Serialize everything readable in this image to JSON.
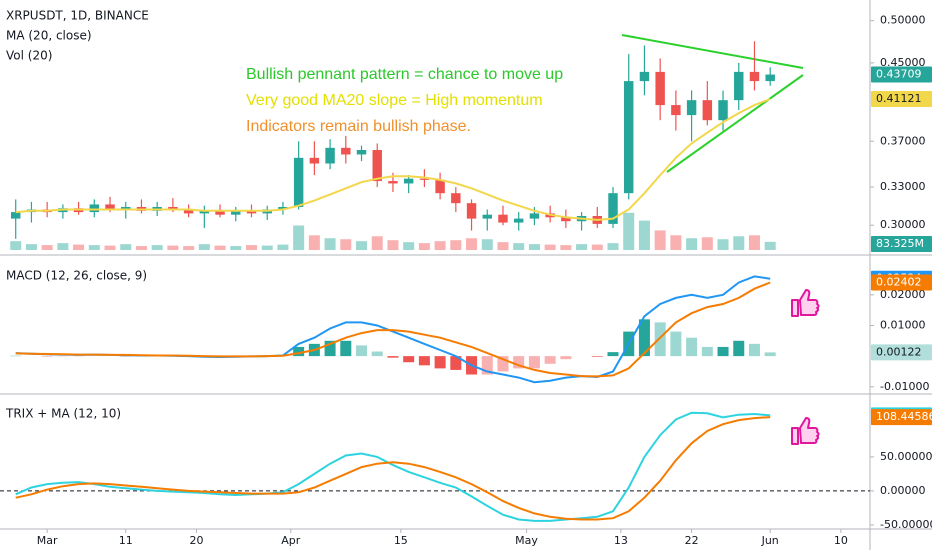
{
  "chart_data": [
    {
      "type": "candlestick",
      "title": "XRPUSDT, 1D, BINANCE",
      "log": true,
      "up_color": "#26a69a",
      "down_color": "#ef5350",
      "x": [
        1,
        3,
        5,
        7,
        9,
        11,
        13,
        15,
        17,
        19,
        21,
        23,
        25,
        27,
        29,
        31,
        33,
        35,
        37,
        39,
        41,
        43,
        45,
        47,
        49,
        51,
        53,
        55,
        57,
        59,
        61,
        63,
        65,
        67,
        69,
        71,
        73,
        75,
        77,
        79,
        81,
        83,
        85,
        87,
        89,
        91,
        93,
        95,
        97
      ],
      "xlim": [
        -1,
        109.7
      ],
      "open": [
        0.305,
        0.31,
        0.312,
        0.31,
        0.313,
        0.31,
        0.316,
        0.312,
        0.314,
        0.311,
        0.314,
        0.312,
        0.309,
        0.311,
        0.308,
        0.311,
        0.309,
        0.312,
        0.314,
        0.355,
        0.35,
        0.364,
        0.358,
        0.362,
        0.335,
        0.333,
        0.337,
        0.336,
        0.325,
        0.317,
        0.305,
        0.308,
        0.302,
        0.305,
        0.309,
        0.306,
        0.303,
        0.307,
        0.301,
        0.325,
        0.43,
        0.44,
        0.405,
        0.395,
        0.41,
        0.39,
        0.41,
        0.44,
        0.43
      ],
      "high": [
        0.32,
        0.318,
        0.318,
        0.316,
        0.318,
        0.32,
        0.322,
        0.318,
        0.32,
        0.318,
        0.321,
        0.316,
        0.315,
        0.316,
        0.314,
        0.316,
        0.315,
        0.318,
        0.37,
        0.37,
        0.372,
        0.375,
        0.366,
        0.368,
        0.342,
        0.34,
        0.345,
        0.342,
        0.33,
        0.32,
        0.312,
        0.315,
        0.31,
        0.314,
        0.315,
        0.312,
        0.31,
        0.314,
        0.33,
        0.46,
        0.47,
        0.455,
        0.42,
        0.42,
        0.43,
        0.42,
        0.45,
        0.475,
        0.445
      ],
      "low": [
        0.29,
        0.302,
        0.306,
        0.305,
        0.308,
        0.306,
        0.31,
        0.305,
        0.309,
        0.307,
        0.31,
        0.306,
        0.298,
        0.306,
        0.303,
        0.306,
        0.304,
        0.308,
        0.312,
        0.34,
        0.345,
        0.35,
        0.352,
        0.33,
        0.326,
        0.325,
        0.33,
        0.32,
        0.31,
        0.296,
        0.296,
        0.3,
        0.296,
        0.3,
        0.302,
        0.298,
        0.296,
        0.298,
        0.298,
        0.32,
        0.415,
        0.39,
        0.38,
        0.37,
        0.385,
        0.38,
        0.4,
        0.42,
        0.425
      ],
      "close": [
        0.31,
        0.312,
        0.31,
        0.313,
        0.31,
        0.316,
        0.312,
        0.314,
        0.311,
        0.314,
        0.312,
        0.309,
        0.311,
        0.308,
        0.311,
        0.309,
        0.312,
        0.314,
        0.355,
        0.35,
        0.364,
        0.358,
        0.362,
        0.335,
        0.333,
        0.337,
        0.336,
        0.325,
        0.317,
        0.305,
        0.308,
        0.302,
        0.305,
        0.309,
        0.306,
        0.303,
        0.307,
        0.301,
        0.325,
        0.43,
        0.44,
        0.405,
        0.395,
        0.41,
        0.39,
        0.41,
        0.44,
        0.43,
        0.43709
      ],
      "ylim": [
        0.282,
        0.52
      ],
      "yticks": [
        {
          "value": 0.5,
          "label": "0.50000"
        },
        {
          "value": 0.45,
          "label": "0.45000"
        },
        {
          "value": 0.37,
          "label": "0.37000"
        },
        {
          "value": 0.33,
          "label": "0.33000"
        },
        {
          "value": 0.3,
          "label": "0.30000"
        }
      ],
      "series": [
        {
          "name": "MA (20, close)",
          "color": "#f2d74b",
          "values": [
            0.31,
            0.311,
            0.311,
            0.312,
            0.312,
            0.312,
            0.312,
            0.312,
            0.312,
            0.312,
            0.312,
            0.312,
            0.311,
            0.311,
            0.311,
            0.311,
            0.311,
            0.312,
            0.315,
            0.319,
            0.324,
            0.329,
            0.334,
            0.337,
            0.339,
            0.339,
            0.338,
            0.336,
            0.333,
            0.329,
            0.324,
            0.319,
            0.315,
            0.311,
            0.308,
            0.306,
            0.305,
            0.304,
            0.305,
            0.312,
            0.325,
            0.34,
            0.355,
            0.368,
            0.378,
            0.388,
            0.397,
            0.405,
            0.41121
          ]
        }
      ],
      "volume": {
        "name": "Vol (20)",
        "values": [
          90,
          60,
          50,
          70,
          55,
          50,
          45,
          60,
          40,
          50,
          45,
          40,
          60,
          45,
          40,
          50,
          45,
          55,
          250,
          150,
          120,
          110,
          90,
          140,
          100,
          80,
          70,
          90,
          100,
          120,
          110,
          80,
          70,
          60,
          55,
          50,
          60,
          55,
          70,
          380,
          300,
          200,
          150,
          120,
          130,
          110,
          140,
          150,
          83.325
        ],
        "last_label": "83.325M",
        "ylim": [
          0,
          2500
        ]
      },
      "annotations": [
        {
          "text": "Bullish pennant pattern = chance to move up",
          "color": "#2bc82b"
        },
        {
          "text": "Very good MA20 slope = High momentum",
          "color": "#e3e000"
        },
        {
          "text": "Indicators remain bullish phase.",
          "color": "#f0902c"
        }
      ]
    },
    {
      "type": "macd",
      "title": "MACD (12, 26, close, 9)",
      "ylim": [
        -0.0117,
        0.032
      ],
      "yticks": [
        {
          "value": 0.02,
          "label": "0.02000"
        },
        {
          "value": 0.01,
          "label": "0.01000"
        },
        {
          "value": -0.01,
          "label": "-0.01000"
        }
      ],
      "series": [
        {
          "color": "#2196f3",
          "values": [
            0.001,
            0.0008,
            0.0006,
            0.0005,
            0.0004,
            0.0005,
            0.0004,
            0.0003,
            0.0002,
            0.0002,
            0.0001,
            0,
            -0.0002,
            -0.0003,
            -0.0002,
            -0.0001,
            0,
            0.0002,
            0.004,
            0.006,
            0.009,
            0.011,
            0.011,
            0.01,
            0.008,
            0.006,
            0.004,
            0.002,
            0,
            -0.003,
            -0.005,
            -0.006,
            -0.007,
            -0.0085,
            -0.008,
            -0.007,
            -0.0065,
            -0.0068,
            -0.005,
            0.004,
            0.013,
            0.017,
            0.019,
            0.02,
            0.019,
            0.02,
            0.024,
            0.026,
            0.02524
          ]
        },
        {
          "color": "#f57c00",
          "values": [
            0.0009,
            0.0008,
            0.0007,
            0.0006,
            0.0005,
            0.0005,
            0.0004,
            0.0004,
            0.0003,
            0.0002,
            0.0002,
            0.0001,
            0,
            -0.0001,
            -0.0001,
            -0.0001,
            0,
            0.0001,
            0.001,
            0.002,
            0.004,
            0.006,
            0.0075,
            0.0085,
            0.0085,
            0.008,
            0.007,
            0.006,
            0.0045,
            0.003,
            0.001,
            -0.001,
            -0.003,
            -0.0045,
            -0.0055,
            -0.006,
            -0.0065,
            -0.0066,
            -0.0063,
            -0.004,
            0.001,
            0.006,
            0.011,
            0.014,
            0.016,
            0.017,
            0.019,
            0.022,
            0.02402
          ]
        }
      ],
      "histogram": {
        "up_color": "#26a69a",
        "down_color": "#ef5350",
        "values": [
          0.0001,
          0,
          -0.0001,
          -0.0001,
          -0.0001,
          0,
          0,
          -0.0001,
          -0.0001,
          0,
          -0.0001,
          -0.0001,
          -0.0002,
          -0.0002,
          -0.0001,
          0,
          0,
          0.0001,
          0.003,
          0.004,
          0.005,
          0.005,
          0.0035,
          0.0015,
          -0.0005,
          -0.002,
          -0.003,
          -0.004,
          -0.0045,
          -0.006,
          -0.006,
          -0.005,
          -0.004,
          -0.004,
          -0.0025,
          -0.001,
          0,
          -0.0002,
          0.0013,
          0.008,
          0.012,
          0.011,
          0.008,
          0.006,
          0.003,
          0.003,
          0.005,
          0.004,
          0.00122
        ]
      }
    },
    {
      "type": "trix",
      "title": "TRIX + MA (12, 10)",
      "ylim": [
        -53,
        138
      ],
      "zero_line": true,
      "yticks": [
        {
          "value": 50,
          "label": "50.00000"
        },
        {
          "value": 0,
          "label": "0.00000"
        },
        {
          "value": -50,
          "label": "-50.00000"
        }
      ],
      "series": [
        {
          "color": "#2ed3e0",
          "values": [
            -5,
            5,
            10,
            12,
            13,
            10,
            6,
            4,
            2,
            0,
            -1,
            -2,
            -3,
            -5,
            -6,
            -5,
            -4,
            -2,
            10,
            25,
            40,
            52,
            55,
            50,
            38,
            28,
            20,
            12,
            5,
            -8,
            -22,
            -35,
            -42,
            -44,
            -44,
            -42,
            -40,
            -38,
            -30,
            5,
            50,
            82,
            105,
            115,
            114,
            108,
            112,
            113,
            111.00988
          ]
        },
        {
          "color": "#f57c00",
          "values": [
            -10,
            -5,
            2,
            7,
            10,
            11,
            10,
            8,
            6,
            4,
            2,
            0,
            -1,
            -2,
            -3,
            -4,
            -4,
            -4,
            -2,
            5,
            15,
            25,
            35,
            40,
            42,
            40,
            35,
            28,
            20,
            10,
            -2,
            -15,
            -25,
            -33,
            -38,
            -41,
            -42,
            -42,
            -40,
            -30,
            -10,
            15,
            45,
            70,
            88,
            98,
            104,
            107,
            108.44586
          ]
        }
      ],
      "xticks": [
        {
          "value": 5,
          "label": "Mar"
        },
        {
          "value": 15,
          "label": "11"
        },
        {
          "value": 24,
          "label": "20"
        },
        {
          "value": 36,
          "label": "Apr"
        },
        {
          "value": 50,
          "label": "15"
        },
        {
          "value": 66,
          "label": "May"
        },
        {
          "value": 78,
          "label": "13"
        },
        {
          "value": 87,
          "label": "22"
        },
        {
          "value": 97,
          "label": "Jun"
        },
        {
          "value": 106,
          "label": "10"
        }
      ]
    }
  ]
}
